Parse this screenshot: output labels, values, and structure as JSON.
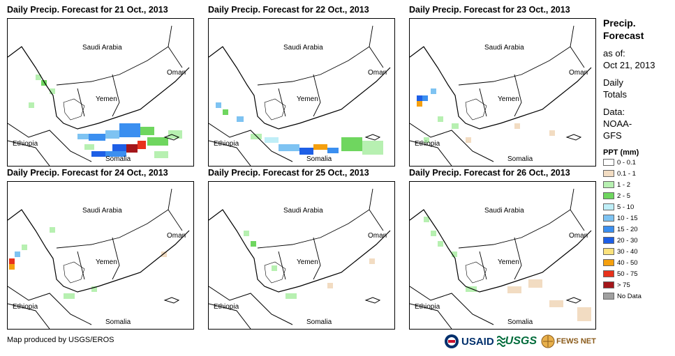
{
  "panels": [
    {
      "title": "Daily Precip. Forecast for 21 Oct., 2013",
      "labels": {
        "saudi": "Saudi Arabia",
        "oman": "Oman",
        "yemen": "Yemen",
        "ethiopia": "Ethiopia",
        "somalia": "Somalia"
      }
    },
    {
      "title": "Daily Precip. Forecast for 22 Oct., 2013",
      "labels": {
        "saudi": "Saudi Arabia",
        "oman": "Oman",
        "yemen": "Yemen",
        "ethiopia": "Ethiopia",
        "somalia": "Somalia"
      }
    },
    {
      "title": "Daily Precip. Forecast for 23 Oct., 2013",
      "labels": {
        "saudi": "Saudi Arabia",
        "oman": "Oman",
        "yemen": "Yemen",
        "ethiopia": "Ethiopia",
        "somalia": "Somalia"
      }
    },
    {
      "title": "Daily Precip. Forecast for 24 Oct., 2013",
      "labels": {
        "saudi": "Saudi Arabia",
        "oman": "Oman",
        "yemen": "Yemen",
        "ethiopia": "Ethiopia",
        "somalia": "Somalia"
      }
    },
    {
      "title": "Daily Precip. Forecast for 25 Oct., 2013",
      "labels": {
        "saudi": "Saudi Arabia",
        "oman": "Oman",
        "yemen": "Yemen",
        "ethiopia": "Ethiopia",
        "somalia": "Somalia"
      }
    },
    {
      "title": "Daily Precip. Forecast for 26 Oct., 2013",
      "labels": {
        "saudi": "Saudi Arabia",
        "oman": "Oman",
        "yemen": "Yemen",
        "ethiopia": "Ethiopia",
        "somalia": "Somalia"
      }
    }
  ],
  "legend": {
    "title_line1": "Precip.",
    "title_line2": "Forecast",
    "asof_label": "as of:",
    "asof_date": "Oct 21, 2013",
    "daily_line1": "Daily",
    "daily_line2": "Totals",
    "data_label": "Data:",
    "data_source_line1": "NOAA-",
    "data_source_line2": "GFS",
    "ppt_title": "PPT (mm)",
    "items": [
      {
        "label": "0 - 0.1",
        "color": "#ffffff"
      },
      {
        "label": "0.1 - 1",
        "color": "#f2dcc2"
      },
      {
        "label": "1 - 2",
        "color": "#b7f0b1"
      },
      {
        "label": "2 - 5",
        "color": "#6fd65f"
      },
      {
        "label": "5 - 10",
        "color": "#bfeef7"
      },
      {
        "label": "10 - 15",
        "color": "#7ec3f2"
      },
      {
        "label": "15 - 20",
        "color": "#3b8ff0"
      },
      {
        "label": "20 - 30",
        "color": "#1e5fe6"
      },
      {
        "label": "30 - 40",
        "color": "#fbe27c"
      },
      {
        "label": "40 - 50",
        "color": "#f5a00f"
      },
      {
        "label": "50 - 75",
        "color": "#e8321c"
      },
      {
        "label": "> 75",
        "color": "#a4161a"
      },
      {
        "label": "No Data",
        "color": "#a0a0a0"
      }
    ]
  },
  "credit": "Map produced by USGS/EROS",
  "logos": {
    "usaid": "USAID",
    "usgs": "USGS",
    "fews": "FEWS NET"
  }
}
